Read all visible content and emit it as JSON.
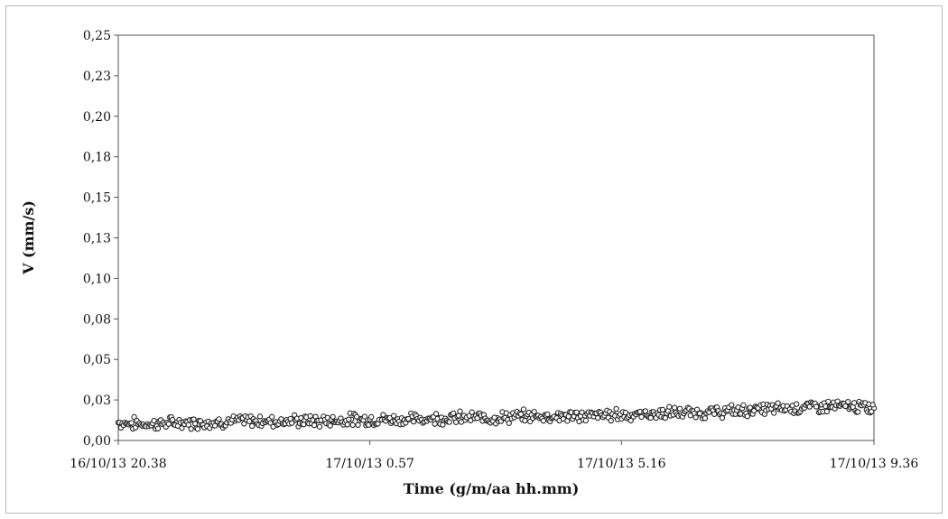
{
  "chart_data": {
    "type": "scatter",
    "title": "",
    "xlabel": "Time (g/m/aa hh.mm)",
    "ylabel": "V (mm/s)",
    "x_ticks": [
      {
        "value": "2013-10-16T20:38",
        "label": "16/10/13 20.38"
      },
      {
        "value": "2013-10-17T00:57",
        "label": "17/10/13 0.57"
      },
      {
        "value": "2013-10-17T05:16",
        "label": "17/10/13 5.16"
      },
      {
        "value": "2013-10-17T09:36",
        "label": "17/10/13 9.36"
      }
    ],
    "xlim": [
      "2013-10-16T20:38",
      "2013-10-17T09:36"
    ],
    "y_ticks": [
      {
        "value": 0.0,
        "label": "0,00"
      },
      {
        "value": 0.025,
        "label": "0,03"
      },
      {
        "value": 0.05,
        "label": "0,05"
      },
      {
        "value": 0.075,
        "label": "0,08"
      },
      {
        "value": 0.1,
        "label": "0,10"
      },
      {
        "value": 0.125,
        "label": "0,13"
      },
      {
        "value": 0.15,
        "label": "0,15"
      },
      {
        "value": 0.175,
        "label": "0,18"
      },
      {
        "value": 0.2,
        "label": "0,20"
      },
      {
        "value": 0.225,
        "label": "0,23"
      },
      {
        "value": 0.25,
        "label": "0,25"
      }
    ],
    "ylim": [
      0,
      0.25
    ],
    "grid": false,
    "marker": "open-circle",
    "series": [
      {
        "points": [
          {
            "x": "2013-10-16T20:38",
            "y": 0.011
          },
          {
            "x": "2013-10-16T21:08",
            "y": 0.01
          },
          {
            "x": "2013-10-16T21:38",
            "y": 0.011
          },
          {
            "x": "2013-10-16T22:08",
            "y": 0.011
          },
          {
            "x": "2013-10-16T22:38",
            "y": 0.012
          },
          {
            "x": "2013-10-16T23:08",
            "y": 0.012
          },
          {
            "x": "2013-10-16T23:38",
            "y": 0.012
          },
          {
            "x": "2013-10-17T00:08",
            "y": 0.012
          },
          {
            "x": "2013-10-17T00:38",
            "y": 0.013
          },
          {
            "x": "2013-10-17T01:08",
            "y": 0.013
          },
          {
            "x": "2013-10-17T01:38",
            "y": 0.013
          },
          {
            "x": "2013-10-17T02:08",
            "y": 0.014
          },
          {
            "x": "2013-10-17T02:38",
            "y": 0.014
          },
          {
            "x": "2013-10-17T03:08",
            "y": 0.014
          },
          {
            "x": "2013-10-17T03:38",
            "y": 0.015
          },
          {
            "x": "2013-10-17T04:08",
            "y": 0.015
          },
          {
            "x": "2013-10-17T04:38",
            "y": 0.015
          },
          {
            "x": "2013-10-17T05:08",
            "y": 0.016
          },
          {
            "x": "2013-10-17T05:38",
            "y": 0.016
          },
          {
            "x": "2013-10-17T06:08",
            "y": 0.017
          },
          {
            "x": "2013-10-17T06:38",
            "y": 0.017
          },
          {
            "x": "2013-10-17T07:08",
            "y": 0.018
          },
          {
            "x": "2013-10-17T07:38",
            "y": 0.019
          },
          {
            "x": "2013-10-17T08:08",
            "y": 0.02
          },
          {
            "x": "2013-10-17T08:38",
            "y": 0.021
          },
          {
            "x": "2013-10-17T09:08",
            "y": 0.021
          },
          {
            "x": "2013-10-17T09:36",
            "y": 0.02
          }
        ]
      }
    ]
  }
}
